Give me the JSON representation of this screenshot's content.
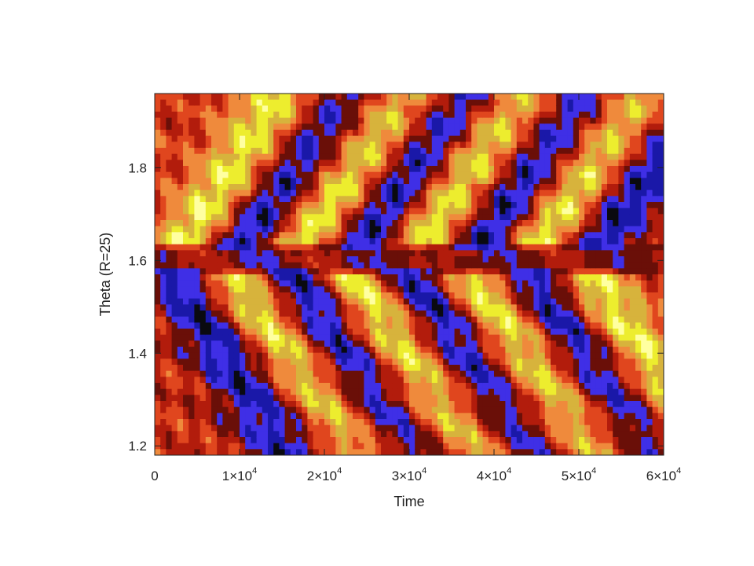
{
  "chart_data": {
    "type": "heatmap",
    "xlabel": "Time",
    "ylabel": "Theta (R=25)",
    "xlim": [
      0,
      60000
    ],
    "ylim": [
      1.18,
      1.96
    ],
    "x_ticks": [
      {
        "value": 0,
        "label": "0"
      },
      {
        "value": 10000,
        "label": "1×10",
        "exp": "4"
      },
      {
        "value": 20000,
        "label": "2×10",
        "exp": "4"
      },
      {
        "value": 30000,
        "label": "3×10",
        "exp": "4"
      },
      {
        "value": 40000,
        "label": "4×10",
        "exp": "4"
      },
      {
        "value": 50000,
        "label": "5×10",
        "exp": "4"
      },
      {
        "value": 60000,
        "label": "6×10",
        "exp": "4"
      }
    ],
    "y_ticks": [
      {
        "value": 1.2,
        "label": "1.2"
      },
      {
        "value": 1.4,
        "label": "1.4"
      },
      {
        "value": 1.6,
        "label": "1.6"
      },
      {
        "value": 1.8,
        "label": "1.8"
      }
    ],
    "colormap": [
      "#0a0a10",
      "#1a18a8",
      "#3f2fe6",
      "#6a0f08",
      "#b21c0c",
      "#e0461e",
      "#ef8a3c",
      "#d7b33c",
      "#eded2e",
      "#ffffa0"
    ],
    "equator_theta": 1.6,
    "bands": [
      {
        "hemisphere": "north",
        "t0": 2000,
        "sign": 1
      },
      {
        "hemisphere": "north",
        "t0": 9000,
        "sign": -1
      },
      {
        "hemisphere": "north",
        "t0": 16000,
        "sign": 1
      },
      {
        "hemisphere": "north",
        "t0": 23000,
        "sign": -1
      },
      {
        "hemisphere": "north",
        "t0": 30000,
        "sign": 1
      },
      {
        "hemisphere": "north",
        "t0": 37000,
        "sign": -1
      },
      {
        "hemisphere": "north",
        "t0": 44000,
        "sign": 1
      },
      {
        "hemisphere": "north",
        "t0": 51000,
        "sign": -1
      },
      {
        "hemisphere": "south",
        "t0": 1000,
        "sign": -1
      },
      {
        "hemisphere": "south",
        "t0": 8000,
        "sign": 1
      },
      {
        "hemisphere": "south",
        "t0": 15000,
        "sign": -1
      },
      {
        "hemisphere": "south",
        "t0": 22000,
        "sign": 1
      },
      {
        "hemisphere": "south",
        "t0": 29000,
        "sign": -1
      },
      {
        "hemisphere": "south",
        "t0": 36000,
        "sign": 1
      },
      {
        "hemisphere": "south",
        "t0": 43000,
        "sign": -1
      },
      {
        "hemisphere": "south",
        "t0": 50000,
        "sign": 1
      }
    ]
  }
}
